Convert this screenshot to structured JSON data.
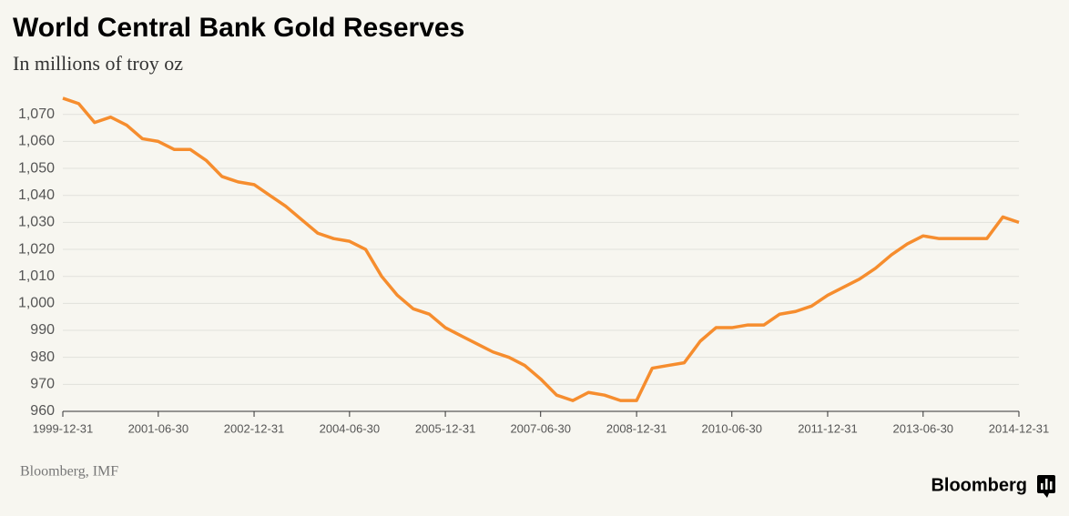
{
  "chart_data": {
    "type": "line",
    "title": "World Central Bank Gold Reserves",
    "subtitle": "In millions of troy oz",
    "source": "Bloomberg, IMF",
    "brand": "Bloomberg",
    "x": [
      "1999-12-31",
      "2000-03-31",
      "2000-06-30",
      "2000-09-30",
      "2000-12-31",
      "2001-03-31",
      "2001-06-30",
      "2001-09-30",
      "2001-12-31",
      "2002-03-31",
      "2002-06-30",
      "2002-09-30",
      "2002-12-31",
      "2003-03-31",
      "2003-06-30",
      "2003-09-30",
      "2003-12-31",
      "2004-03-31",
      "2004-06-30",
      "2004-09-30",
      "2004-12-31",
      "2005-03-31",
      "2005-06-30",
      "2005-09-30",
      "2005-12-31",
      "2006-03-31",
      "2006-06-30",
      "2006-09-30",
      "2006-12-31",
      "2007-03-31",
      "2007-06-30",
      "2007-09-30",
      "2007-12-31",
      "2008-03-31",
      "2008-06-30",
      "2008-09-30",
      "2008-12-31",
      "2009-03-31",
      "2009-06-30",
      "2009-09-30",
      "2009-12-31",
      "2010-03-31",
      "2010-06-30",
      "2010-09-30",
      "2010-12-31",
      "2011-03-31",
      "2011-06-30",
      "2011-09-30",
      "2011-12-31",
      "2012-03-31",
      "2012-06-30",
      "2012-09-30",
      "2012-12-31",
      "2013-03-31",
      "2013-06-30",
      "2013-09-30",
      "2013-12-31",
      "2014-03-31",
      "2014-06-30",
      "2014-09-30",
      "2014-12-31"
    ],
    "series": [
      {
        "name": "Gold reserves",
        "color": "#f68d2e",
        "values": [
          1076,
          1074,
          1067,
          1069,
          1066,
          1061,
          1060,
          1057,
          1057,
          1053,
          1047,
          1045,
          1044,
          1040,
          1036,
          1031,
          1026,
          1024,
          1023,
          1020,
          1010,
          1003,
          998,
          996,
          991,
          988,
          985,
          982,
          980,
          977,
          972,
          966,
          964,
          967,
          966,
          964,
          964,
          976,
          977,
          978,
          986,
          991,
          991,
          992,
          992,
          996,
          997,
          999,
          1003,
          1006,
          1009,
          1013,
          1018,
          1022,
          1025,
          1024,
          1024,
          1024,
          1024,
          1032,
          1030
        ]
      }
    ],
    "xlim": [
      "1999-12-31",
      "2014-12-31"
    ],
    "xticks": [
      "1999-12-31",
      "2001-06-30",
      "2002-12-31",
      "2004-06-30",
      "2005-12-31",
      "2007-06-30",
      "2008-12-31",
      "2010-06-30",
      "2011-12-31",
      "2013-06-30",
      "2014-12-31"
    ],
    "ylim": [
      960,
      1078
    ],
    "yticks": [
      960,
      970,
      980,
      990,
      {
        "value": 1000,
        "label": "1,000"
      },
      {
        "value": 1010,
        "label": "1,010"
      },
      {
        "value": 1020,
        "label": "1,020"
      },
      {
        "value": 1030,
        "label": "1,030"
      },
      {
        "value": 1040,
        "label": "1,040"
      },
      {
        "value": 1050,
        "label": "1,050"
      },
      {
        "value": 1060,
        "label": "1,060"
      },
      {
        "value": 1070,
        "label": "1,070"
      }
    ],
    "grid": true
  }
}
